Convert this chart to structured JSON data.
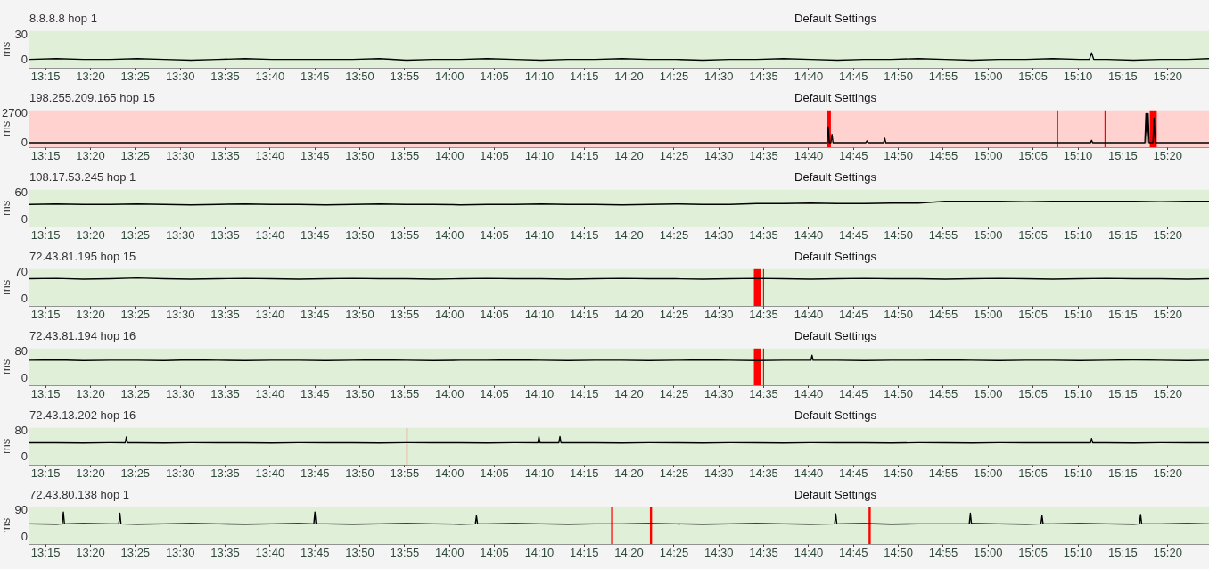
{
  "chart_data": [
    {
      "type": "line",
      "title": "8.8.8.8 hop 1",
      "subtitle": "Default Settings",
      "ylabel": "ms",
      "marker": "none",
      "color": "#000000",
      "xlim": [
        13.22,
        15.41
      ],
      "ylim": [
        -9,
        35
      ],
      "yticks": [
        0,
        30
      ],
      "xticks": [
        {
          "value": 13.25,
          "label": "13:15"
        },
        {
          "value": 13.3333,
          "label": "13:20"
        },
        {
          "value": 13.4167,
          "label": "13:25"
        },
        {
          "value": 13.5,
          "label": "13:30"
        },
        {
          "value": 13.5833,
          "label": "13:35"
        },
        {
          "value": 13.6667,
          "label": "13:40"
        },
        {
          "value": 13.75,
          "label": "13:45"
        },
        {
          "value": 13.8333,
          "label": "13:50"
        },
        {
          "value": 13.9167,
          "label": "13:55"
        },
        {
          "value": 14,
          "label": "14:00"
        },
        {
          "value": 14.0833,
          "label": "14:05"
        },
        {
          "value": 14.1667,
          "label": "14:10"
        },
        {
          "value": 14.25,
          "label": "14:15"
        },
        {
          "value": 14.3333,
          "label": "14:20"
        },
        {
          "value": 14.4167,
          "label": "14:25"
        },
        {
          "value": 14.5,
          "label": "14:30"
        },
        {
          "value": 14.5833,
          "label": "14:35"
        },
        {
          "value": 14.6667,
          "label": "14:40"
        },
        {
          "value": 14.75,
          "label": "14:45"
        },
        {
          "value": 14.8333,
          "label": "14:50"
        },
        {
          "value": 14.9167,
          "label": "14:55"
        },
        {
          "value": 15,
          "label": "15:00"
        },
        {
          "value": 15.0833,
          "label": "15:05"
        },
        {
          "value": 15.1667,
          "label": "15:10"
        },
        {
          "value": 15.25,
          "label": "15:15"
        },
        {
          "value": 15.3333,
          "label": "15:20"
        }
      ],
      "bands": [
        {
          "axis": "y",
          "from": -9,
          "to": 35,
          "color": "#e0f0d8"
        }
      ],
      "x": [
        13.22,
        13.27,
        13.32,
        13.37,
        13.42,
        13.47,
        13.52,
        13.57,
        13.62,
        13.67,
        13.72,
        13.77,
        13.82,
        13.87,
        13.92,
        13.97,
        14.02,
        14.07,
        14.12,
        14.17,
        14.22,
        14.27,
        14.32,
        14.37,
        14.42,
        14.47,
        14.52,
        14.57,
        14.62,
        14.67,
        14.72,
        14.77,
        14.82,
        14.87,
        14.92,
        14.97,
        15.02,
        15.07,
        15.12,
        15.17,
        15.188,
        15.192,
        15.196,
        15.22,
        15.27,
        15.32,
        15.37,
        15.41
      ],
      "values": [
        1,
        2,
        1,
        1,
        2,
        1,
        0,
        1,
        2,
        1,
        1,
        1,
        1,
        2,
        0,
        1,
        1,
        2,
        1,
        0,
        1,
        1,
        2,
        1,
        1,
        0,
        1,
        1,
        2,
        1,
        0,
        1,
        1,
        2,
        1,
        0,
        1,
        1,
        2,
        1,
        1,
        9,
        1,
        1,
        0,
        1,
        1,
        2
      ]
    },
    {
      "type": "line",
      "title": "198.255.209.165 hop 15",
      "subtitle": "Default Settings",
      "ylabel": "ms",
      "marker": "none",
      "color": "#000000",
      "xlim": [
        13.22,
        15.41
      ],
      "ylim": [
        -380,
        3000
      ],
      "yticks": [
        0,
        2700
      ],
      "xticks": [
        {
          "value": 13.25,
          "label": "13:15"
        },
        {
          "value": 13.3333,
          "label": "13:20"
        },
        {
          "value": 13.4167,
          "label": "13:25"
        },
        {
          "value": 13.5,
          "label": "13:30"
        },
        {
          "value": 13.5833,
          "label": "13:35"
        },
        {
          "value": 13.6667,
          "label": "13:40"
        },
        {
          "value": 13.75,
          "label": "13:45"
        },
        {
          "value": 13.8333,
          "label": "13:50"
        },
        {
          "value": 13.9167,
          "label": "13:55"
        },
        {
          "value": 14,
          "label": "14:00"
        },
        {
          "value": 14.0833,
          "label": "14:05"
        },
        {
          "value": 14.1667,
          "label": "14:10"
        },
        {
          "value": 14.25,
          "label": "14:15"
        },
        {
          "value": 14.3333,
          "label": "14:20"
        },
        {
          "value": 14.4167,
          "label": "14:25"
        },
        {
          "value": 14.5,
          "label": "14:30"
        },
        {
          "value": 14.5833,
          "label": "14:35"
        },
        {
          "value": 14.6667,
          "label": "14:40"
        },
        {
          "value": 14.75,
          "label": "14:45"
        },
        {
          "value": 14.8333,
          "label": "14:50"
        },
        {
          "value": 14.9167,
          "label": "14:55"
        },
        {
          "value": 15,
          "label": "15:00"
        },
        {
          "value": 15.0833,
          "label": "15:05"
        },
        {
          "value": 15.1667,
          "label": "15:10"
        },
        {
          "value": 15.25,
          "label": "15:15"
        },
        {
          "value": 15.3333,
          "label": "15:20"
        }
      ],
      "bands": [
        {
          "axis": "y",
          "from": -380,
          "to": 3000,
          "color": "#ffd2d0"
        },
        {
          "axis": "x",
          "from": 14.7,
          "to": 14.708,
          "color": "#ff0000"
        },
        {
          "axis": "x",
          "from": 15.128,
          "to": 15.13,
          "color": "#ff0000"
        },
        {
          "axis": "x",
          "from": 15.216,
          "to": 15.218,
          "color": "#ff0000"
        },
        {
          "axis": "x",
          "from": 15.3,
          "to": 15.313,
          "color": "#ff0000"
        }
      ],
      "x": [
        13.22,
        13.32,
        13.42,
        13.52,
        13.62,
        13.72,
        13.82,
        13.92,
        14.02,
        14.12,
        14.22,
        14.32,
        14.42,
        14.52,
        14.62,
        14.69,
        14.701,
        14.703,
        14.705,
        14.708,
        14.71,
        14.712,
        14.72,
        14.773,
        14.775,
        14.777,
        14.806,
        14.808,
        14.81,
        14.87,
        14.97,
        15.07,
        15.17,
        15.19,
        15.192,
        15.194,
        15.25,
        15.291,
        15.293,
        15.295,
        15.297,
        15.299,
        15.306,
        15.308,
        15.31,
        15.35,
        15.41
      ],
      "values": [
        30,
        30,
        30,
        30,
        30,
        30,
        30,
        30,
        30,
        30,
        30,
        30,
        30,
        30,
        30,
        30,
        30,
        1500,
        30,
        30,
        800,
        30,
        30,
        30,
        200,
        30,
        30,
        450,
        30,
        30,
        30,
        30,
        30,
        30,
        250,
        30,
        30,
        30,
        2700,
        30,
        2700,
        30,
        30,
        2300,
        30,
        30,
        30
      ]
    },
    {
      "type": "line",
      "title": "108.17.53.245 hop 1",
      "subtitle": "Default Settings",
      "ylabel": "ms",
      "marker": "none",
      "color": "#000000",
      "xlim": [
        13.22,
        15.41
      ],
      "ylim": [
        -16,
        67
      ],
      "yticks": [
        0,
        60
      ],
      "xticks": [
        {
          "value": 13.25,
          "label": "13:15"
        },
        {
          "value": 13.3333,
          "label": "13:20"
        },
        {
          "value": 13.4167,
          "label": "13:25"
        },
        {
          "value": 13.5,
          "label": "13:30"
        },
        {
          "value": 13.5833,
          "label": "13:35"
        },
        {
          "value": 13.6667,
          "label": "13:40"
        },
        {
          "value": 13.75,
          "label": "13:45"
        },
        {
          "value": 13.8333,
          "label": "13:50"
        },
        {
          "value": 13.9167,
          "label": "13:55"
        },
        {
          "value": 14,
          "label": "14:00"
        },
        {
          "value": 14.0833,
          "label": "14:05"
        },
        {
          "value": 14.1667,
          "label": "14:10"
        },
        {
          "value": 14.25,
          "label": "14:15"
        },
        {
          "value": 14.3333,
          "label": "14:20"
        },
        {
          "value": 14.4167,
          "label": "14:25"
        },
        {
          "value": 14.5,
          "label": "14:30"
        },
        {
          "value": 14.5833,
          "label": "14:35"
        },
        {
          "value": 14.6667,
          "label": "14:40"
        },
        {
          "value": 14.75,
          "label": "14:45"
        },
        {
          "value": 14.8333,
          "label": "14:50"
        },
        {
          "value": 14.9167,
          "label": "14:55"
        },
        {
          "value": 15,
          "label": "15:00"
        },
        {
          "value": 15.0833,
          "label": "15:05"
        },
        {
          "value": 15.1667,
          "label": "15:10"
        },
        {
          "value": 15.25,
          "label": "15:15"
        },
        {
          "value": 15.3333,
          "label": "15:20"
        }
      ],
      "bands": [
        {
          "axis": "y",
          "from": -16,
          "to": 67,
          "color": "#e0f0d8"
        }
      ],
      "x": [
        13.22,
        13.27,
        13.32,
        13.37,
        13.42,
        13.47,
        13.52,
        13.57,
        13.62,
        13.67,
        13.72,
        13.77,
        13.82,
        13.87,
        13.92,
        13.97,
        14.02,
        14.07,
        14.12,
        14.17,
        14.22,
        14.27,
        14.32,
        14.37,
        14.42,
        14.47,
        14.52,
        14.57,
        14.62,
        14.67,
        14.72,
        14.77,
        14.82,
        14.87,
        14.92,
        14.97,
        15.02,
        15.07,
        15.12,
        15.17,
        15.22,
        15.27,
        15.32,
        15.37,
        15.41
      ],
      "values": [
        34,
        35,
        34,
        34,
        35,
        34,
        33,
        34,
        35,
        34,
        34,
        33,
        34,
        35,
        34,
        34,
        33,
        34,
        34,
        35,
        34,
        34,
        33,
        34,
        35,
        34,
        34,
        36,
        36,
        37,
        36,
        36,
        37,
        37,
        41,
        41,
        41,
        40,
        41,
        41,
        41,
        41,
        40,
        41,
        41
      ]
    },
    {
      "type": "line",
      "title": "72.43.81.195 hop 15",
      "subtitle": "Default Settings",
      "ylabel": "ms",
      "marker": "none",
      "color": "#000000",
      "xlim": [
        13.22,
        15.41
      ],
      "ylim": [
        -17,
        79
      ],
      "yticks": [
        0,
        70
      ],
      "xticks": [
        {
          "value": 13.25,
          "label": "13:15"
        },
        {
          "value": 13.3333,
          "label": "13:20"
        },
        {
          "value": 13.4167,
          "label": "13:25"
        },
        {
          "value": 13.5,
          "label": "13:30"
        },
        {
          "value": 13.5833,
          "label": "13:35"
        },
        {
          "value": 13.6667,
          "label": "13:40"
        },
        {
          "value": 13.75,
          "label": "13:45"
        },
        {
          "value": 13.8333,
          "label": "13:50"
        },
        {
          "value": 13.9167,
          "label": "13:55"
        },
        {
          "value": 14,
          "label": "14:00"
        },
        {
          "value": 14.0833,
          "label": "14:05"
        },
        {
          "value": 14.1667,
          "label": "14:10"
        },
        {
          "value": 14.25,
          "label": "14:15"
        },
        {
          "value": 14.3333,
          "label": "14:20"
        },
        {
          "value": 14.4167,
          "label": "14:25"
        },
        {
          "value": 14.5,
          "label": "14:30"
        },
        {
          "value": 14.5833,
          "label": "14:35"
        },
        {
          "value": 14.6667,
          "label": "14:40"
        },
        {
          "value": 14.75,
          "label": "14:45"
        },
        {
          "value": 14.8333,
          "label": "14:50"
        },
        {
          "value": 14.9167,
          "label": "14:55"
        },
        {
          "value": 15,
          "label": "15:00"
        },
        {
          "value": 15.0833,
          "label": "15:05"
        },
        {
          "value": 15.1667,
          "label": "15:10"
        },
        {
          "value": 15.25,
          "label": "15:15"
        },
        {
          "value": 15.3333,
          "label": "15:20"
        }
      ],
      "bands": [
        {
          "axis": "y",
          "from": -17,
          "to": 79,
          "color": "#e0f0d8"
        },
        {
          "axis": "x",
          "from": 14.565,
          "to": 14.578,
          "color": "#ff0000"
        },
        {
          "axis": "x",
          "from": 14.582,
          "to": 14.584,
          "color": "#ff0000"
        }
      ],
      "x": [
        13.22,
        13.27,
        13.32,
        13.37,
        13.42,
        13.47,
        13.52,
        13.57,
        13.62,
        13.67,
        13.72,
        13.77,
        13.82,
        13.87,
        13.92,
        13.97,
        14.02,
        14.07,
        14.12,
        14.17,
        14.22,
        14.27,
        14.32,
        14.37,
        14.42,
        14.47,
        14.52,
        14.57,
        14.62,
        14.67,
        14.72,
        14.77,
        14.82,
        14.87,
        14.92,
        14.97,
        15.02,
        15.07,
        15.12,
        15.17,
        15.22,
        15.27,
        15.32,
        15.37,
        15.41
      ],
      "values": [
        54,
        55,
        53,
        54,
        56,
        54,
        53,
        54,
        55,
        54,
        53,
        54,
        55,
        54,
        54,
        53,
        54,
        55,
        54,
        54,
        53,
        54,
        55,
        54,
        54,
        53,
        54,
        55,
        54,
        53,
        54,
        55,
        54,
        54,
        53,
        54,
        55,
        54,
        53,
        54,
        55,
        54,
        54,
        53,
        54
      ]
    },
    {
      "type": "line",
      "title": "72.43.81.194 hop 16",
      "subtitle": "Default Settings",
      "ylabel": "ms",
      "marker": "none",
      "color": "#000000",
      "xlim": [
        13.22,
        15.41
      ],
      "ylim": [
        -20,
        90
      ],
      "yticks": [
        0,
        80
      ],
      "xticks": [
        {
          "value": 13.25,
          "label": "13:15"
        },
        {
          "value": 13.3333,
          "label": "13:20"
        },
        {
          "value": 13.4167,
          "label": "13:25"
        },
        {
          "value": 13.5,
          "label": "13:30"
        },
        {
          "value": 13.5833,
          "label": "13:35"
        },
        {
          "value": 13.6667,
          "label": "13:40"
        },
        {
          "value": 13.75,
          "label": "13:45"
        },
        {
          "value": 13.8333,
          "label": "13:50"
        },
        {
          "value": 13.9167,
          "label": "13:55"
        },
        {
          "value": 14,
          "label": "14:00"
        },
        {
          "value": 14.0833,
          "label": "14:05"
        },
        {
          "value": 14.1667,
          "label": "14:10"
        },
        {
          "value": 14.25,
          "label": "14:15"
        },
        {
          "value": 14.3333,
          "label": "14:20"
        },
        {
          "value": 14.4167,
          "label": "14:25"
        },
        {
          "value": 14.5,
          "label": "14:30"
        },
        {
          "value": 14.5833,
          "label": "14:35"
        },
        {
          "value": 14.6667,
          "label": "14:40"
        },
        {
          "value": 14.75,
          "label": "14:45"
        },
        {
          "value": 14.8333,
          "label": "14:50"
        },
        {
          "value": 14.9167,
          "label": "14:55"
        },
        {
          "value": 15,
          "label": "15:00"
        },
        {
          "value": 15.0833,
          "label": "15:05"
        },
        {
          "value": 15.1667,
          "label": "15:10"
        },
        {
          "value": 15.25,
          "label": "15:15"
        },
        {
          "value": 15.3333,
          "label": "15:20"
        }
      ],
      "bands": [
        {
          "axis": "y",
          "from": -20,
          "to": 90,
          "color": "#e0f0d8"
        },
        {
          "axis": "x",
          "from": 14.565,
          "to": 14.578,
          "color": "#ff0000"
        },
        {
          "axis": "x",
          "from": 14.582,
          "to": 14.584,
          "color": "#ff0000"
        }
      ],
      "x": [
        13.22,
        13.27,
        13.32,
        13.37,
        13.42,
        13.47,
        13.52,
        13.57,
        13.62,
        13.67,
        13.72,
        13.77,
        13.82,
        13.87,
        13.92,
        13.97,
        14.02,
        14.07,
        14.12,
        14.17,
        14.22,
        14.27,
        14.32,
        14.37,
        14.42,
        14.47,
        14.52,
        14.57,
        14.62,
        14.67,
        14.671,
        14.673,
        14.675,
        14.72,
        14.77,
        14.82,
        14.87,
        14.92,
        14.97,
        15.02,
        15.07,
        15.12,
        15.17,
        15.22,
        15.27,
        15.32,
        15.37,
        15.41
      ],
      "values": [
        55,
        56,
        54,
        55,
        55,
        54,
        56,
        55,
        54,
        55,
        55,
        54,
        55,
        56,
        55,
        54,
        55,
        55,
        56,
        55,
        54,
        55,
        55,
        54,
        55,
        56,
        55,
        54,
        55,
        55,
        55,
        70,
        55,
        55,
        54,
        55,
        55,
        56,
        55,
        54,
        55,
        55,
        54,
        55,
        56,
        55,
        54,
        55
      ]
    },
    {
      "type": "line",
      "title": "72.43.13.202 hop 16",
      "subtitle": "Default Settings",
      "ylabel": "ms",
      "marker": "none",
      "color": "#000000",
      "xlim": [
        13.22,
        15.41
      ],
      "ylim": [
        -23,
        91
      ],
      "yticks": [
        0,
        80
      ],
      "xticks": [
        {
          "value": 13.25,
          "label": "13:15"
        },
        {
          "value": 13.3333,
          "label": "13:20"
        },
        {
          "value": 13.4167,
          "label": "13:25"
        },
        {
          "value": 13.5,
          "label": "13:30"
        },
        {
          "value": 13.5833,
          "label": "13:35"
        },
        {
          "value": 13.6667,
          "label": "13:40"
        },
        {
          "value": 13.75,
          "label": "13:45"
        },
        {
          "value": 13.8333,
          "label": "13:50"
        },
        {
          "value": 13.9167,
          "label": "13:55"
        },
        {
          "value": 14,
          "label": "14:00"
        },
        {
          "value": 14.0833,
          "label": "14:05"
        },
        {
          "value": 14.1667,
          "label": "14:10"
        },
        {
          "value": 14.25,
          "label": "14:15"
        },
        {
          "value": 14.3333,
          "label": "14:20"
        },
        {
          "value": 14.4167,
          "label": "14:25"
        },
        {
          "value": 14.5,
          "label": "14:30"
        },
        {
          "value": 14.5833,
          "label": "14:35"
        },
        {
          "value": 14.6667,
          "label": "14:40"
        },
        {
          "value": 14.75,
          "label": "14:45"
        },
        {
          "value": 14.8333,
          "label": "14:50"
        },
        {
          "value": 14.9167,
          "label": "14:55"
        },
        {
          "value": 15,
          "label": "15:00"
        },
        {
          "value": 15.0833,
          "label": "15:05"
        },
        {
          "value": 15.1667,
          "label": "15:10"
        },
        {
          "value": 15.25,
          "label": "15:15"
        },
        {
          "value": 15.3333,
          "label": "15:20"
        }
      ],
      "bands": [
        {
          "axis": "y",
          "from": -23,
          "to": 91,
          "color": "#e0f0d8"
        },
        {
          "axis": "x",
          "from": 13.92,
          "to": 13.922,
          "color": "#ff0000"
        }
      ],
      "x": [
        13.22,
        13.27,
        13.32,
        13.37,
        13.398,
        13.4,
        13.402,
        13.42,
        13.47,
        13.52,
        13.57,
        13.62,
        13.67,
        13.72,
        13.77,
        13.82,
        13.87,
        13.92,
        13.97,
        14.02,
        14.07,
        14.12,
        14.164,
        14.166,
        14.168,
        14.17,
        14.203,
        14.205,
        14.207,
        14.22,
        14.27,
        14.32,
        14.37,
        14.42,
        14.47,
        14.52,
        14.57,
        14.62,
        14.67,
        14.72,
        14.77,
        14.82,
        14.87,
        14.92,
        14.97,
        15.02,
        15.07,
        15.12,
        15.17,
        15.19,
        15.192,
        15.194,
        15.22,
        15.27,
        15.32,
        15.37,
        15.41
      ],
      "values": [
        45,
        45,
        44,
        45,
        45,
        63,
        45,
        45,
        44,
        45,
        45,
        45,
        44,
        45,
        45,
        45,
        44,
        45,
        45,
        45,
        44,
        45,
        45,
        64,
        45,
        45,
        45,
        64,
        45,
        45,
        45,
        44,
        45,
        45,
        44,
        45,
        45,
        44,
        45,
        45,
        45,
        44,
        45,
        45,
        44,
        45,
        45,
        45,
        45,
        45,
        58,
        45,
        45,
        44,
        45,
        45,
        45
      ]
    },
    {
      "type": "line",
      "title": "72.43.80.138 hop 1",
      "subtitle": "Default Settings",
      "ylabel": "ms",
      "marker": "none",
      "color": "#000000",
      "xlim": [
        13.22,
        15.41
      ],
      "ylim": [
        -22,
        100
      ],
      "yticks": [
        0,
        90
      ],
      "xticks": [
        {
          "value": 13.25,
          "label": "13:15"
        },
        {
          "value": 13.3333,
          "label": "13:20"
        },
        {
          "value": 13.4167,
          "label": "13:25"
        },
        {
          "value": 13.5,
          "label": "13:30"
        },
        {
          "value": 13.5833,
          "label": "13:35"
        },
        {
          "value": 13.6667,
          "label": "13:40"
        },
        {
          "value": 13.75,
          "label": "13:45"
        },
        {
          "value": 13.8333,
          "label": "13:50"
        },
        {
          "value": 13.9167,
          "label": "13:55"
        },
        {
          "value": 14,
          "label": "14:00"
        },
        {
          "value": 14.0833,
          "label": "14:05"
        },
        {
          "value": 14.1667,
          "label": "14:10"
        },
        {
          "value": 14.25,
          "label": "14:15"
        },
        {
          "value": 14.3333,
          "label": "14:20"
        },
        {
          "value": 14.4167,
          "label": "14:25"
        },
        {
          "value": 14.5,
          "label": "14:30"
        },
        {
          "value": 14.5833,
          "label": "14:35"
        },
        {
          "value": 14.6667,
          "label": "14:40"
        },
        {
          "value": 14.75,
          "label": "14:45"
        },
        {
          "value": 14.8333,
          "label": "14:50"
        },
        {
          "value": 14.9167,
          "label": "14:55"
        },
        {
          "value": 15,
          "label": "15:00"
        },
        {
          "value": 15.0833,
          "label": "15:05"
        },
        {
          "value": 15.1667,
          "label": "15:10"
        },
        {
          "value": 15.25,
          "label": "15:15"
        },
        {
          "value": 15.3333,
          "label": "15:20"
        }
      ],
      "bands": [
        {
          "axis": "y",
          "from": -22,
          "to": 100,
          "color": "#e0f0d8"
        },
        {
          "axis": "x",
          "from": 14.3,
          "to": 14.302,
          "color": "#ff0000"
        },
        {
          "axis": "x",
          "from": 14.372,
          "to": 14.376,
          "color": "#ff0000"
        },
        {
          "axis": "x",
          "from": 14.778,
          "to": 14.782,
          "color": "#ff0000"
        }
      ],
      "x": [
        13.22,
        13.27,
        13.281,
        13.283,
        13.285,
        13.32,
        13.37,
        13.386,
        13.388,
        13.39,
        13.42,
        13.47,
        13.52,
        13.57,
        13.62,
        13.67,
        13.72,
        13.748,
        13.75,
        13.752,
        13.77,
        13.82,
        13.87,
        13.92,
        13.97,
        14.02,
        14.048,
        14.05,
        14.052,
        14.07,
        14.12,
        14.17,
        14.22,
        14.27,
        14.32,
        14.37,
        14.42,
        14.47,
        14.52,
        14.57,
        14.62,
        14.67,
        14.715,
        14.717,
        14.719,
        14.72,
        14.77,
        14.82,
        14.87,
        14.92,
        14.965,
        14.967,
        14.969,
        14.97,
        15.02,
        15.07,
        15.098,
        15.1,
        15.102,
        15.12,
        15.17,
        15.22,
        15.27,
        15.281,
        15.283,
        15.285,
        15.32,
        15.37,
        15.41
      ],
      "values": [
        45,
        44,
        45,
        84,
        45,
        46,
        45,
        45,
        80,
        45,
        44,
        45,
        46,
        45,
        44,
        45,
        46,
        45,
        84,
        45,
        45,
        44,
        45,
        46,
        45,
        44,
        45,
        72,
        45,
        45,
        46,
        45,
        44,
        45,
        45,
        46,
        45,
        44,
        45,
        46,
        45,
        44,
        45,
        78,
        45,
        45,
        46,
        44,
        45,
        45,
        45,
        80,
        45,
        46,
        45,
        44,
        45,
        72,
        45,
        45,
        46,
        45,
        44,
        45,
        76,
        45,
        45,
        46,
        45
      ]
    }
  ]
}
